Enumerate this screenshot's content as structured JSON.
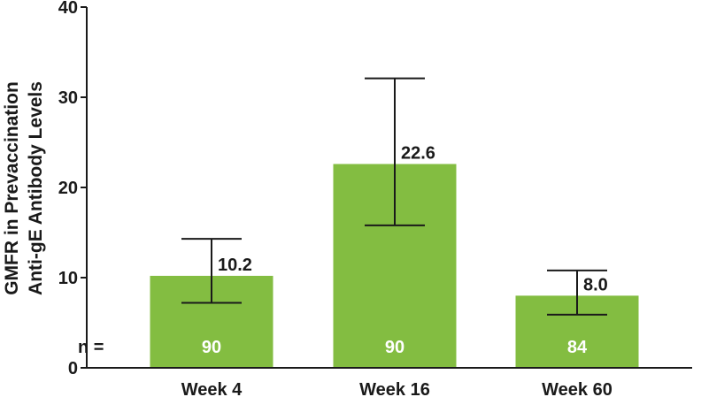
{
  "chart_data": {
    "type": "bar",
    "ylabel": [
      "GMFR in Prevaccination",
      "Anti-gE Antibody Levels"
    ],
    "xlabel": "",
    "categories": [
      "Week 4",
      "Week 16",
      "Week 60"
    ],
    "values": [
      10.2,
      22.6,
      8.0
    ],
    "value_labels": [
      "10.2",
      "22.6",
      "8.0"
    ],
    "error_low": [
      7.2,
      15.8,
      5.9
    ],
    "error_high": [
      14.3,
      32.1,
      10.8
    ],
    "n_prefix": "n =",
    "n_values": [
      "90",
      "90",
      "84"
    ],
    "ylim": [
      0,
      40
    ],
    "yticks": [
      0,
      10,
      20,
      30,
      40
    ],
    "ytick_labels": [
      "0",
      "10",
      "20",
      "30",
      "40"
    ],
    "grid": false,
    "colors": {
      "bar": "#83bd41",
      "axis": "#1a1a1a",
      "n_text": "#ffffff"
    }
  }
}
